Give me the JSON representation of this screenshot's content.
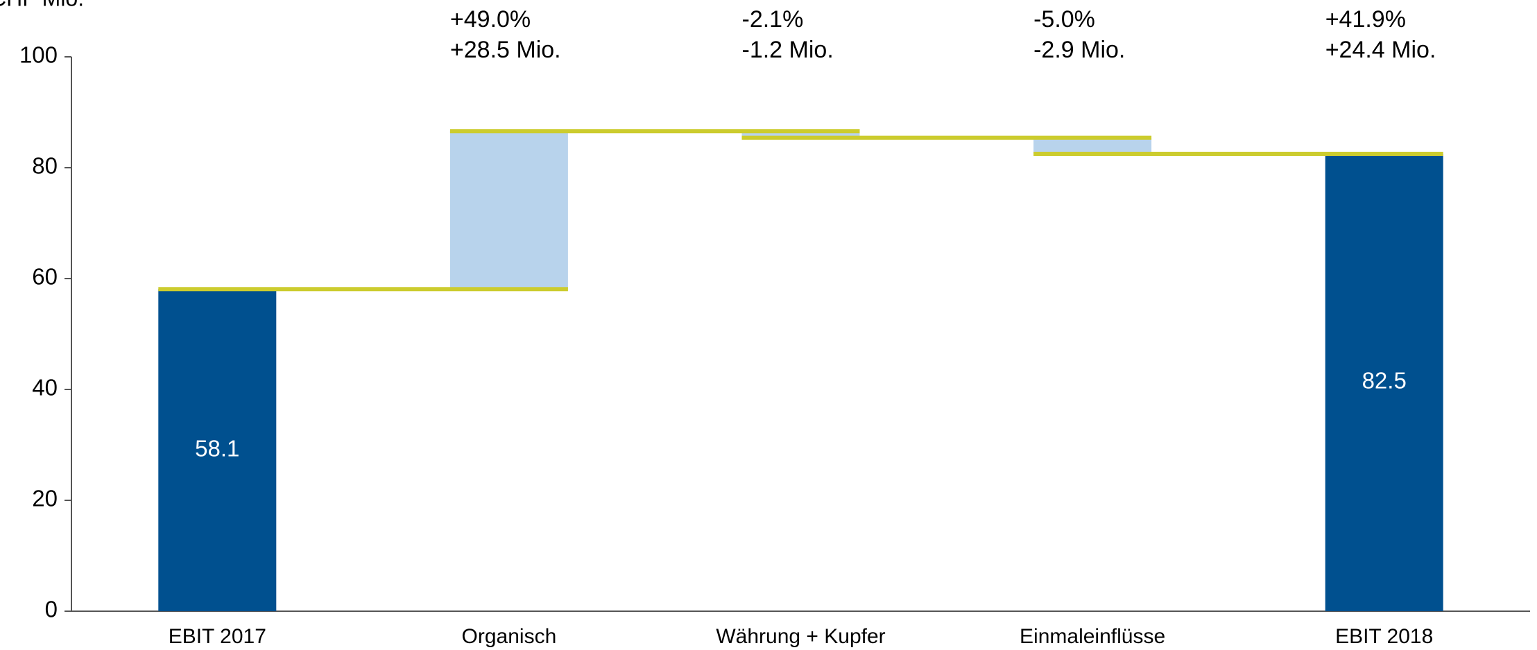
{
  "chart_data": {
    "type": "waterfall",
    "y_axis_label": "CHF Mio.",
    "categories": [
      "EBIT 2017",
      "Organisch",
      "Währung + Kupfer",
      "Einmaleinflüsse",
      "EBIT 2018"
    ],
    "values": [
      58.1,
      28.5,
      -1.2,
      -2.9,
      82.5
    ],
    "totals": [
      true,
      false,
      false,
      false,
      true
    ],
    "change_labels": [
      null,
      [
        "+49.0%",
        "+28.5 Mio."
      ],
      [
        "-2.1%",
        "-1.2 Mio."
      ],
      [
        "-5.0%",
        "-2.9 Mio."
      ],
      [
        "+41.9%",
        "+24.4 Mio."
      ]
    ],
    "total_color": "#00508f",
    "delta_color": "#b8d3ec",
    "connector_color": "#cccc2e",
    "ylim": [
      0,
      100
    ],
    "yticks": [
      0,
      20,
      40,
      60,
      80,
      100
    ],
    "grid": false
  }
}
